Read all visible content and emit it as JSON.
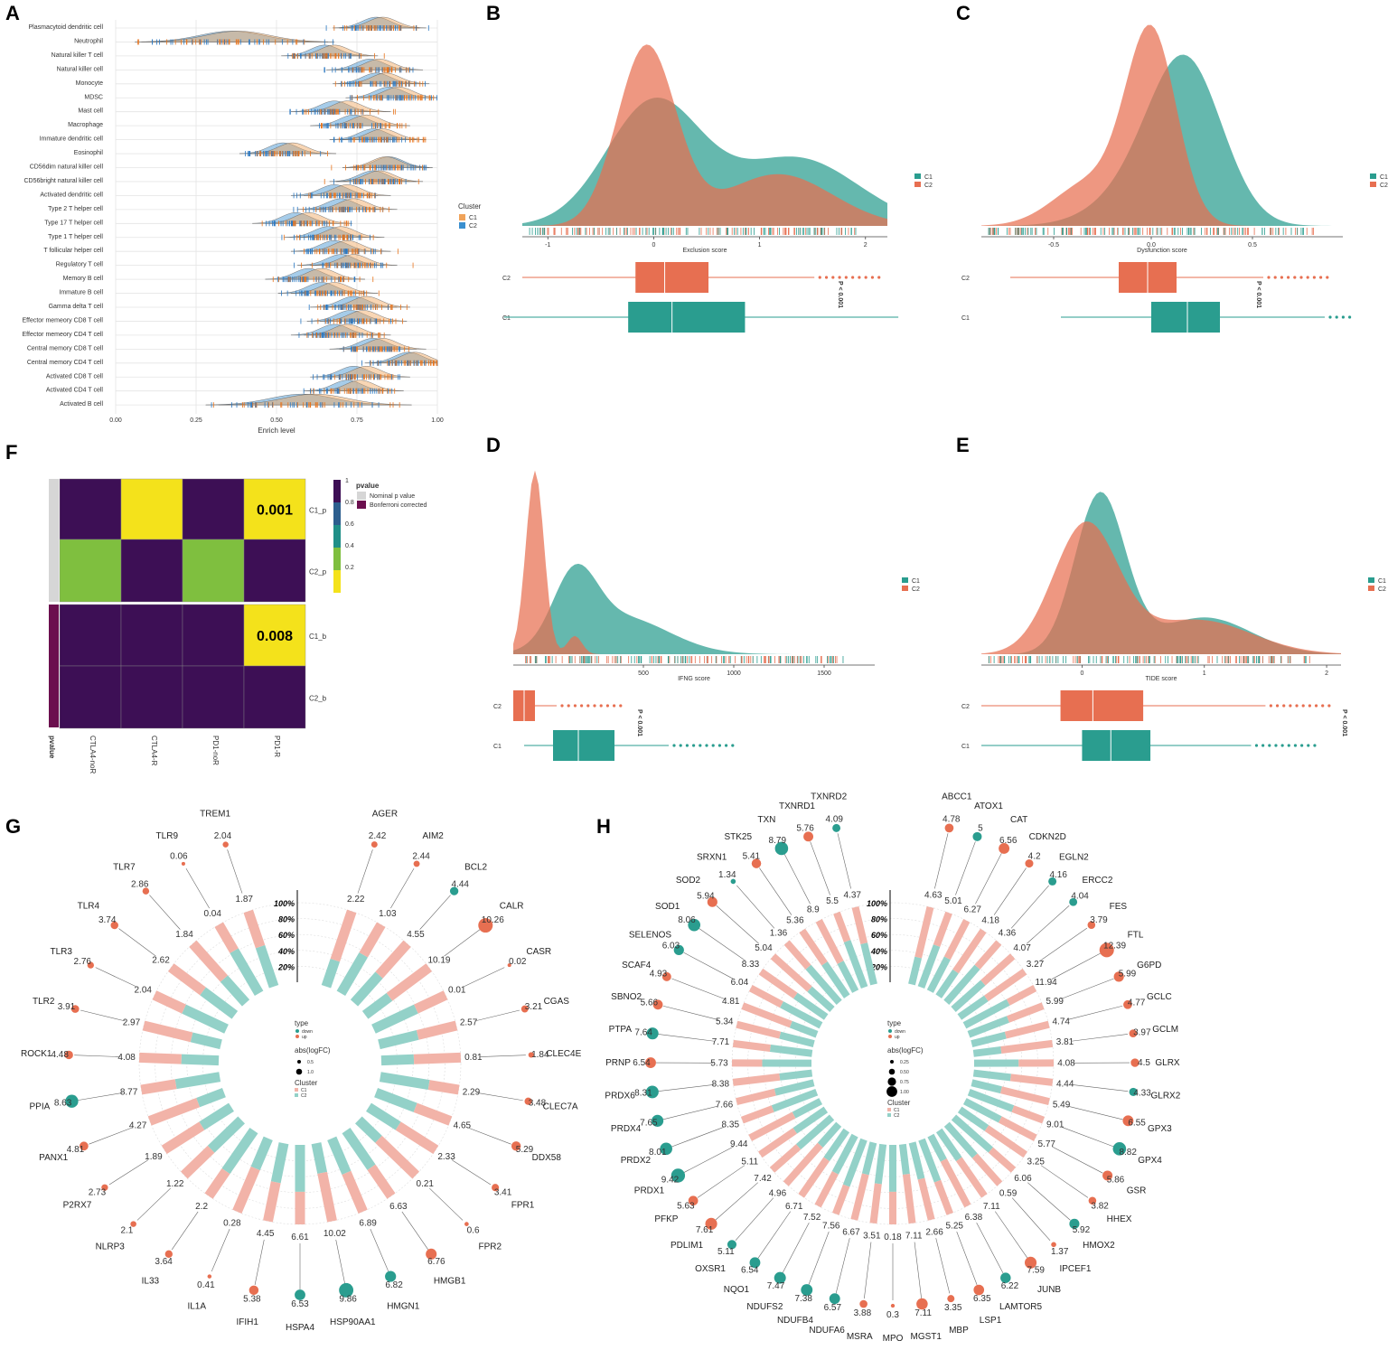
{
  "colors": {
    "c1_teal": "#2a9d8f",
    "c2_orange": "#e76f51",
    "ridge_c1": "#f0a35a",
    "ridge_c2": "#3a8fcf",
    "heat_yellow": "#f4e21b",
    "heat_green": "#7fbf3f",
    "heat_purple": "#3d0f55",
    "heat_teal": "#1f8f88",
    "heat_blue": "#2c5e8e",
    "bonf": "#6b0f4e",
    "nominal": "#d6d6d6",
    "petal_c1": "#f2b3a8",
    "petal_c2": "#93d1c8"
  },
  "panels": {
    "A": "A",
    "B": "B",
    "C": "C",
    "D": "D",
    "E": "E",
    "F": "F",
    "G": "G",
    "H": "H"
  },
  "panelA": {
    "cell_types": [
      "Plasmacytoid dendritic cell",
      "Neutrophil",
      "Natural killer T cell",
      "Natural killer cell",
      "Monocyte",
      "MDSC",
      "Mast cell",
      "Macrophage",
      "Immature dendritic cell",
      "Eosinophil",
      "CD56dim natural killer cell",
      "CD56bright natural killer cell",
      "Activated dendritic cell",
      "Type 2 T helper cell",
      "Type 17 T helper cell",
      "Type 1 T helper cell",
      "T follicular helper cell",
      "Regulatory T cell",
      "Memory B cell",
      "Immature  B cell",
      "Gamma delta T cell",
      "Effector memeory CD8 T cell",
      "Effector memeory CD4 T cell",
      "Central memory CD8 T cell",
      "Central memory CD4 T cell",
      "Activated CD8 T cell",
      "Activated CD4 T cell",
      "Activated B cell"
    ],
    "peaks_c1": [
      0.83,
      0.38,
      0.68,
      0.82,
      0.84,
      0.88,
      0.72,
      0.78,
      0.83,
      0.55,
      0.84,
      0.82,
      0.72,
      0.74,
      0.6,
      0.7,
      0.72,
      0.74,
      0.64,
      0.68,
      0.78,
      0.77,
      0.72,
      0.83,
      0.93,
      0.78,
      0.76,
      0.62
    ],
    "peaks_c2": [
      0.81,
      0.36,
      0.65,
      0.79,
      0.81,
      0.85,
      0.68,
      0.74,
      0.8,
      0.52,
      0.85,
      0.8,
      0.68,
      0.7,
      0.56,
      0.66,
      0.68,
      0.7,
      0.6,
      0.64,
      0.74,
      0.73,
      0.68,
      0.8,
      0.91,
      0.74,
      0.72,
      0.58
    ],
    "x_ticks": [
      "0.00",
      "0.25",
      "0.50",
      "0.75",
      "1.00"
    ],
    "xlabel": "Enrich level",
    "legend_title": "Cluster",
    "legend": [
      "C1",
      "C2"
    ]
  },
  "density_panels": [
    {
      "id": "B",
      "xlabel": "Exclusion score",
      "ticks": [
        "-1",
        "0",
        "1",
        "2"
      ],
      "pval": "P < 0.001",
      "c1_label": "C1",
      "c2_label": "C2",
      "legend": [
        "C1",
        "C2"
      ]
    },
    {
      "id": "C",
      "xlabel": "Dysfunction score",
      "ticks": [
        "-0.5",
        "0.0",
        "0.5"
      ],
      "pval": "P < 0.001",
      "c1_label": "C1",
      "c2_label": "C2",
      "legend": [
        "C1",
        "C2"
      ]
    },
    {
      "id": "D",
      "xlabel": "IFNG score",
      "ticks": [
        "500",
        "1000",
        "1500"
      ],
      "pval": "P < 0.001",
      "c1_label": "C1",
      "c2_label": "C2",
      "legend": [
        "C1",
        "C2"
      ]
    },
    {
      "id": "E",
      "xlabel": "TIDE score",
      "ticks": [
        "0",
        "1",
        "2"
      ],
      "pval": "P < 0.001",
      "c1_label": "C1",
      "c2_label": "C2",
      "legend": [
        "C1",
        "C2"
      ]
    }
  ],
  "panelF": {
    "columns": [
      "CTLA4-noR",
      "CTLA4-R",
      "PD1-noR",
      "PD1-R"
    ],
    "rows": [
      "C1_p",
      "C2_p",
      "C1_b",
      "C2_b"
    ],
    "values": [
      [
        1,
        0.001,
        1,
        0.001
      ],
      [
        0.2,
        1,
        0.2,
        1
      ],
      [
        1,
        1,
        1,
        0.008
      ],
      [
        1,
        1,
        1,
        1
      ]
    ],
    "cell_labels": [
      [
        "",
        "",
        "",
        "0.001"
      ],
      [
        "",
        "",
        "",
        ""
      ],
      [
        "",
        "",
        "",
        "0.008"
      ],
      [
        "",
        "",
        "",
        ""
      ]
    ],
    "scale_ticks": [
      "1",
      "0.8",
      "0.6",
      "0.4",
      "0.2"
    ],
    "legend_title": "pvalue",
    "legend_items": [
      "Nominal p value",
      "Bonferroni corrected"
    ],
    "annot_label": "pvalue"
  },
  "chart_data": [
    {
      "type": "circular",
      "panel": "G",
      "genes": [
        "AGER",
        "AIM2",
        "BCL2",
        "CALR",
        "CASR",
        "CGAS",
        "CLEC4E",
        "CLEC7A",
        "DDX58",
        "FPR1",
        "FPR2",
        "HMGB1",
        "HMGN1",
        "HSP90AA1",
        "HSPA4",
        "IFIH1",
        "IL1A",
        "IL33",
        "NLRP3",
        "P2RX7",
        "PANX1",
        "PPIA",
        "ROCK1",
        "TLR2",
        "TLR3",
        "TLR4",
        "TLR7",
        "TLR9",
        "TREM1"
      ],
      "inner_values": [
        "2.22",
        "1.03",
        "4.55",
        "10.19",
        "0.01",
        "2.57",
        "0.81",
        "2.29",
        "4.65",
        "2.33",
        "0.21",
        "6.63",
        "6.89",
        "10.02",
        "6.61",
        "4.45",
        "0.28",
        "2.2",
        "1.22",
        "1.89",
        "4.27",
        "8.77",
        "4.08",
        "2.97",
        "2.04",
        "2.62",
        "1.84",
        "0.04",
        "1.87"
      ],
      "outer_values": [
        "2.42",
        "2.44",
        "4.44",
        "10.26",
        "0.02",
        "3.21",
        "1.84",
        "3.48",
        "5.29",
        "3.41",
        "0.6",
        "6.76",
        "6.82",
        "9.86",
        "6.53",
        "5.38",
        "0.41",
        "3.64",
        "2.1",
        "2.73",
        "4.81",
        "8.63",
        "4.48",
        "3.91",
        "2.76",
        "3.74",
        "2.86",
        "0.06",
        "2.04"
      ],
      "direction": [
        "up",
        "up",
        "down",
        "up",
        "up",
        "up",
        "up",
        "up",
        "up",
        "up",
        "up",
        "up",
        "down",
        "down",
        "down",
        "up",
        "up",
        "up",
        "up",
        "up",
        "up",
        "down",
        "up",
        "up",
        "up",
        "up",
        "up",
        "up",
        "up"
      ],
      "pct_ticks": [
        "100%",
        "80%",
        "60%",
        "40%",
        "20%"
      ],
      "legend": {
        "type_title": "type",
        "types": [
          "down",
          "up"
        ],
        "size_title": "abs(logFC)",
        "sizes": [
          "0.5",
          "1.0"
        ],
        "cluster_title": "Cluster",
        "clusters": [
          "C1",
          "C2"
        ]
      }
    },
    {
      "type": "circular",
      "panel": "H",
      "genes": [
        "ABCC1",
        "ATOX1",
        "CAT",
        "CDKN2D",
        "EGLN2",
        "ERCC2",
        "FES",
        "FTL",
        "G6PD",
        "GCLC",
        "GCLM",
        "GLRX",
        "GLRX2",
        "GPX3",
        "GPX4",
        "GSR",
        "HHEX",
        "HMOX2",
        "IPCEF1",
        "JUNB",
        "LAMTOR5",
        "LSP1",
        "MBP",
        "MGST1",
        "MPO",
        "MSRA",
        "NDUFA6",
        "NDUFB4",
        "NDUFS2",
        "NQO1",
        "OXSR1",
        "PDLIM1",
        "PFKP",
        "PRDX1",
        "PRDX2",
        "PRDX4",
        "PRDX6",
        "PRNP",
        "PTPA",
        "SBNO2",
        "SCAF4",
        "SELENOS",
        "SOD1",
        "SOD2",
        "SRXN1",
        "STK25",
        "TXN",
        "TXNRD1",
        "TXNRD2"
      ],
      "inner_values": [
        "4.63",
        "5.01",
        "6.27",
        "4.18",
        "4.36",
        "4.07",
        "3.27",
        "11.94",
        "5.99",
        "4.74",
        "3.81",
        "4.08",
        "4.44",
        "5.49",
        "9.01",
        "5.77",
        "3.25",
        "6.06",
        "0.59",
        "7.11",
        "6.38",
        "5.25",
        "2.66",
        "7.11",
        "0.18",
        "3.51",
        "6.67",
        "7.56",
        "7.52",
        "6.71",
        "4.96",
        "7.42",
        "5.11",
        "9.44",
        "8.35",
        "7.66",
        "8.38",
        "5.73",
        "7.71",
        "5.34",
        "4.81",
        "6.04",
        "8.33",
        "5.04",
        "1.36",
        "5.36",
        "8.9",
        "5.5",
        "4.37"
      ],
      "outer_values": [
        "4.78",
        "5",
        "6.56",
        "4.2",
        "4.16",
        "4.04",
        "3.79",
        "12.39",
        "5.99",
        "4.77",
        "3.97",
        "4.5",
        "4.33",
        "6.55",
        "8.82",
        "5.86",
        "3.82",
        "5.92",
        "1.37",
        "7.59",
        "6.22",
        "6.35",
        "3.35",
        "7.11",
        "0.3",
        "3.88",
        "6.57",
        "7.38",
        "7.47",
        "6.54",
        "5.11",
        "7.61",
        "5.63",
        "9.42",
        "8.01",
        "7.65",
        "8.31",
        "6.54",
        "7.64",
        "5.66",
        "4.93",
        "6.03",
        "8.06",
        "5.94",
        "1.34",
        "5.41",
        "8.79",
        "5.76",
        "4.09"
      ],
      "direction": [
        "up",
        "down",
        "up",
        "up",
        "down",
        "down",
        "up",
        "up",
        "up",
        "up",
        "up",
        "up",
        "down",
        "up",
        "down",
        "up",
        "up",
        "down",
        "up",
        "up",
        "down",
        "up",
        "up",
        "up",
        "up",
        "up",
        "down",
        "down",
        "down",
        "down",
        "down",
        "up",
        "up",
        "down",
        "down",
        "down",
        "down",
        "up",
        "down",
        "up",
        "up",
        "down",
        "down",
        "up",
        "down",
        "up",
        "down",
        "up",
        "down"
      ],
      "pct_ticks": [
        "100%",
        "80%",
        "60%",
        "40%",
        "20%"
      ],
      "legend": {
        "type_title": "type",
        "types": [
          "down",
          "up"
        ],
        "size_title": "abs(logFC)",
        "sizes": [
          "0.25",
          "0.50",
          "0.75",
          "1.00"
        ],
        "cluster_title": "Cluster",
        "clusters": [
          "C1",
          "C2"
        ]
      }
    }
  ]
}
